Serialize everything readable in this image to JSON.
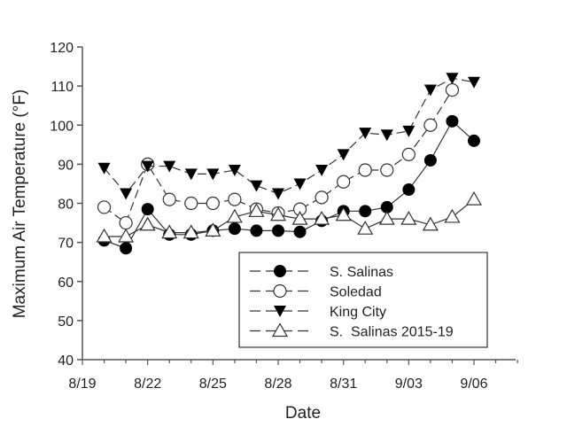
{
  "chart_data": {
    "type": "line",
    "title": "",
    "xlabel": "Date",
    "ylabel": "Maximum Air Temperature (°F)",
    "ylim": [
      40,
      120
    ],
    "yticks": [
      40,
      50,
      60,
      70,
      80,
      90,
      100,
      110,
      120
    ],
    "xtick_labels": [
      "8/19",
      "8/22",
      "8/25",
      "8/28",
      "8/31",
      "9/03",
      "9/06"
    ],
    "x": [
      "8/20",
      "8/21",
      "8/22",
      "8/23",
      "8/24",
      "8/25",
      "8/26",
      "8/27",
      "8/28",
      "8/29",
      "8/30",
      "8/31",
      "9/01",
      "9/02",
      "9/03",
      "9/04",
      "9/05",
      "9/06"
    ],
    "grid": false,
    "legend_position": "bottom-right",
    "series": [
      {
        "name": "S. Salinas",
        "marker": "filled-circle",
        "values": [
          70.5,
          68.5,
          78.5,
          72,
          72,
          73,
          73.5,
          73,
          73,
          72.7,
          75.5,
          78,
          78,
          79,
          83.5,
          91,
          101,
          96
        ]
      },
      {
        "name": "Soledad",
        "marker": "open-circle",
        "values": [
          79,
          75,
          90,
          81,
          80,
          80,
          81,
          78.5,
          77.5,
          78.5,
          81.5,
          85.5,
          88.5,
          88.5,
          92.5,
          100,
          109,
          null
        ]
      },
      {
        "name": "King City",
        "marker": "filled-triangle-down",
        "values": [
          89,
          82.5,
          89.5,
          89.5,
          87.5,
          87.5,
          88.5,
          84.5,
          82.5,
          85,
          88.5,
          92.5,
          98,
          97.5,
          98.5,
          109,
          112,
          111
        ]
      },
      {
        "name": "S.  Salinas 2015-19",
        "marker": "open-triangle-up",
        "values": [
          71.5,
          71.5,
          74.5,
          72.5,
          72.5,
          73,
          76.5,
          78,
          77,
          76,
          76,
          77,
          73.5,
          76,
          76,
          74.5,
          76.5,
          81
        ]
      }
    ]
  }
}
